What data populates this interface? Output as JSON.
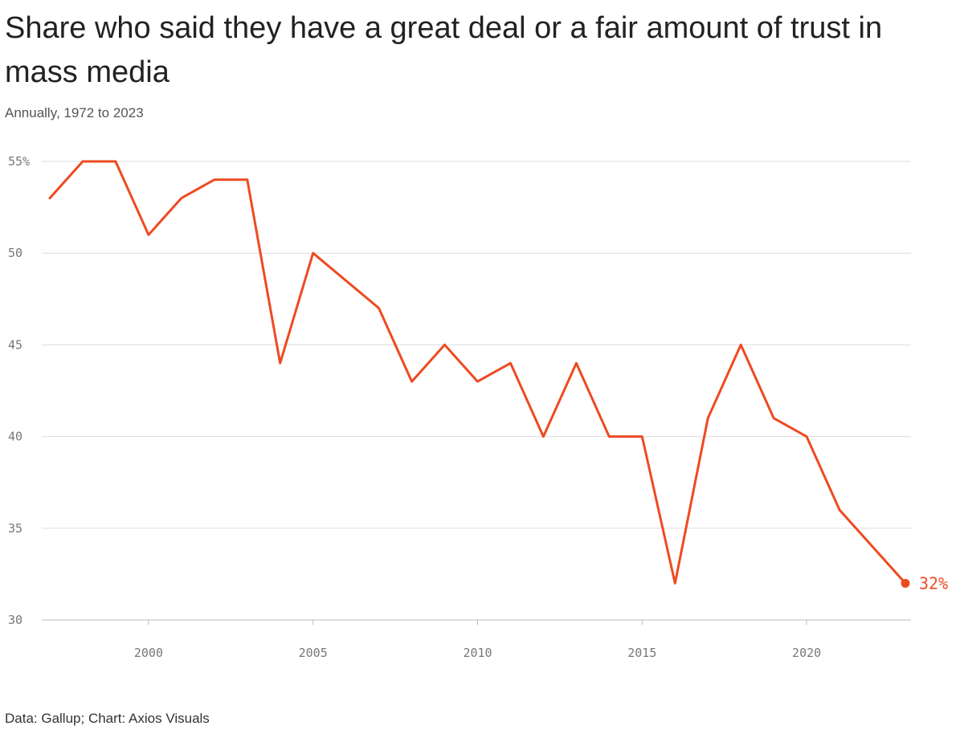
{
  "chart_data": {
    "type": "line",
    "title": "Share who said they have a great deal or a fair amount of trust in mass media",
    "subtitle": "Annually, 1972 to 2023",
    "source": "Data: Gallup; Chart: Axios Visuals",
    "x": [
      1997,
      1998,
      1999,
      2000,
      2001,
      2002,
      2003,
      2004,
      2005,
      2007,
      2008,
      2009,
      2010,
      2011,
      2012,
      2013,
      2014,
      2015,
      2016,
      2017,
      2018,
      2019,
      2020,
      2021,
      2023
    ],
    "series": [
      {
        "values": [
          53,
          55,
          55,
          51,
          53,
          54,
          54,
          44,
          50,
          47,
          43,
          45,
          43,
          44,
          40,
          44,
          40,
          40,
          32,
          41,
          45,
          41,
          40,
          36,
          32
        ]
      }
    ],
    "xlim": [
      1997,
      2023
    ],
    "ylim": [
      30,
      55
    ],
    "x_ticks": [
      "2000",
      "2005",
      "2010",
      "2015",
      "2020"
    ],
    "y_ticks": [
      "30",
      "35",
      "40",
      "45",
      "50",
      "55%"
    ],
    "end_label": "32%",
    "grid": true,
    "line_color": "#ee4a22"
  }
}
